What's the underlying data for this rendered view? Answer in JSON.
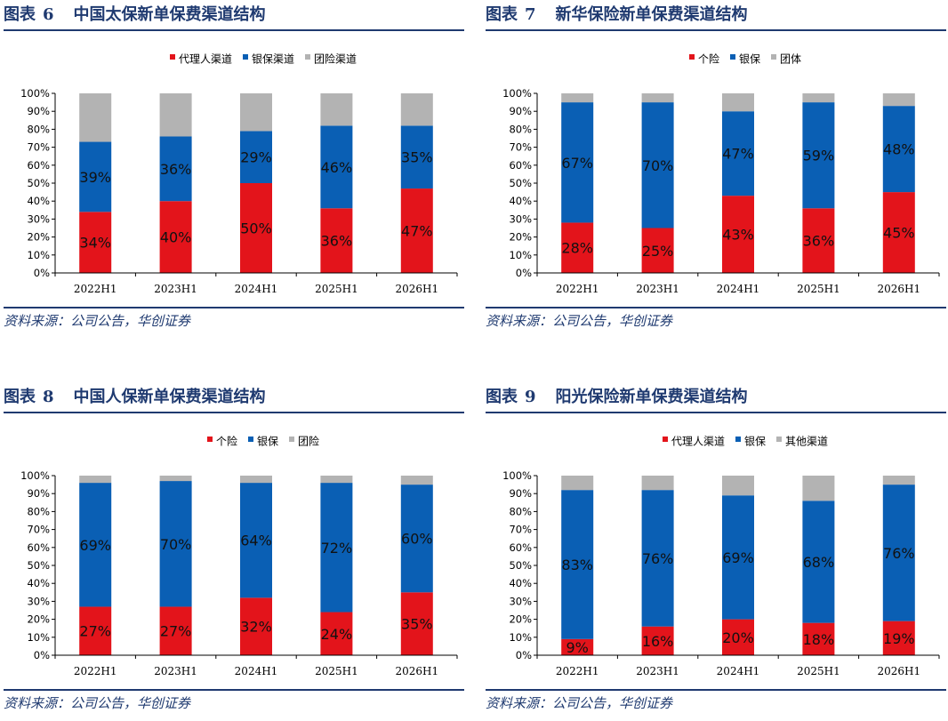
{
  "colors": {
    "red": "#e3141b",
    "blue": "#0a5fb4",
    "gray": "#b3b3b3",
    "title": "#1f3a70"
  },
  "panels": [
    {
      "label": "图表",
      "number": "6",
      "title": "中国太保新单保费渠道结构",
      "source": "资料来源：公司公告，华创证券",
      "chart_data": {
        "type": "bar",
        "stacked": true,
        "categories": [
          "2022H1",
          "2023H1",
          "2024H1",
          "2025H1",
          "2026H1"
        ],
        "yticks": [
          "0%",
          "10%",
          "20%",
          "30%",
          "40%",
          "50%",
          "60%",
          "70%",
          "80%",
          "90%",
          "100%"
        ],
        "ylim": [
          0,
          100
        ],
        "legend_position": "top-center",
        "series": [
          {
            "name": "代理人渠道",
            "color": "#e3141b",
            "values": [
              34,
              40,
              50,
              36,
              47
            ],
            "labels": [
              "34%",
              "40%",
              "50%",
              "36%",
              "47%"
            ]
          },
          {
            "name": "银保渠道",
            "color": "#0a5fb4",
            "values": [
              39,
              36,
              29,
              46,
              35
            ],
            "labels": [
              "39%",
              "36%",
              "29%",
              "46%",
              "35%"
            ]
          },
          {
            "name": "团险渠道",
            "color": "#b3b3b3",
            "values": [
              27,
              24,
              21,
              18,
              18
            ],
            "labels": []
          }
        ]
      }
    },
    {
      "label": "图表",
      "number": "7",
      "title": "新华保险新单保费渠道结构",
      "source": "资料来源：公司公告，华创证券",
      "chart_data": {
        "type": "bar",
        "stacked": true,
        "categories": [
          "2022H1",
          "2023H1",
          "2024H1",
          "2025H1",
          "2026H1"
        ],
        "yticks": [
          "0%",
          "10%",
          "20%",
          "30%",
          "40%",
          "50%",
          "60%",
          "70%",
          "80%",
          "90%",
          "100%"
        ],
        "ylim": [
          0,
          100
        ],
        "legend_position": "top-center",
        "series": [
          {
            "name": "个险",
            "color": "#e3141b",
            "values": [
              28,
              25,
              43,
              36,
              45
            ],
            "labels": [
              "28%",
              "25%",
              "43%",
              "36%",
              "45%"
            ]
          },
          {
            "name": "银保",
            "color": "#0a5fb4",
            "values": [
              67,
              70,
              47,
              59,
              48
            ],
            "labels": [
              "67%",
              "70%",
              "47%",
              "59%",
              "48%"
            ]
          },
          {
            "name": "团体",
            "color": "#b3b3b3",
            "values": [
              5,
              5,
              10,
              5,
              7
            ],
            "labels": []
          }
        ]
      }
    },
    {
      "label": "图表",
      "number": "8",
      "title": "中国人保新单保费渠道结构",
      "source": "资料来源：公司公告，华创证券",
      "chart_data": {
        "type": "bar",
        "stacked": true,
        "categories": [
          "2022H1",
          "2023H1",
          "2024H1",
          "2025H1",
          "2026H1"
        ],
        "yticks": [
          "0%",
          "10%",
          "20%",
          "30%",
          "40%",
          "50%",
          "60%",
          "70%",
          "80%",
          "90%",
          "100%"
        ],
        "ylim": [
          0,
          100
        ],
        "legend_position": "top-center",
        "series": [
          {
            "name": "个险",
            "color": "#e3141b",
            "values": [
              27,
              27,
              32,
              24,
              35
            ],
            "labels": [
              "27%",
              "27%",
              "32%",
              "24%",
              "35%"
            ]
          },
          {
            "name": "银保",
            "color": "#0a5fb4",
            "values": [
              69,
              70,
              64,
              72,
              60
            ],
            "labels": [
              "69%",
              "70%",
              "64%",
              "72%",
              "60%"
            ]
          },
          {
            "name": "团险",
            "color": "#b3b3b3",
            "values": [
              4,
              3,
              4,
              4,
              5
            ],
            "labels": []
          }
        ]
      }
    },
    {
      "label": "图表",
      "number": "9",
      "title": "阳光保险新单保费渠道结构",
      "source": "资料来源：公司公告，华创证券",
      "chart_data": {
        "type": "bar",
        "stacked": true,
        "categories": [
          "2022H1",
          "2023H1",
          "2024H1",
          "2025H1",
          "2026H1"
        ],
        "yticks": [
          "0%",
          "10%",
          "20%",
          "30%",
          "40%",
          "50%",
          "60%",
          "70%",
          "80%",
          "90%",
          "100%"
        ],
        "ylim": [
          0,
          100
        ],
        "legend_position": "top-center",
        "series": [
          {
            "name": "代理人渠道",
            "color": "#e3141b",
            "values": [
              9,
              16,
              20,
              18,
              19
            ],
            "labels": [
              "9%",
              "16%",
              "20%",
              "18%",
              "19%"
            ]
          },
          {
            "name": "银保",
            "color": "#0a5fb4",
            "values": [
              83,
              76,
              69,
              68,
              76
            ],
            "labels": [
              "83%",
              "76%",
              "69%",
              "68%",
              "76%"
            ]
          },
          {
            "name": "其他渠道",
            "color": "#b3b3b3",
            "values": [
              8,
              8,
              11,
              14,
              5
            ],
            "labels": []
          }
        ]
      }
    }
  ]
}
